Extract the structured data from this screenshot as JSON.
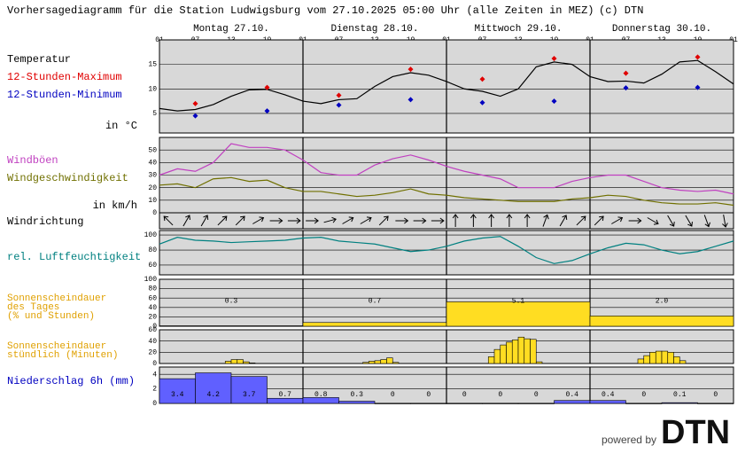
{
  "header": {
    "title": "Vorhersagediagramm für die Station Ludwigsburg vom 27.10.2025 05:00 Uhr (alle Zeiten in MEZ)",
    "copyright": "(c) DTN",
    "powered": "powered by",
    "logo": "DTN"
  },
  "time_axis": {
    "hour_labels": [
      "01",
      "07",
      "13",
      "19",
      "01",
      "07",
      "13",
      "19",
      "01",
      "07",
      "13",
      "19",
      "01",
      "07",
      "13",
      "19",
      "01"
    ],
    "days": [
      "Montag 27.10.",
      "Dienstag 28.10.",
      "Mittwoch 29.10.",
      "Donnerstag 30.10."
    ]
  },
  "chart_data": [
    {
      "type": "line",
      "labels": [
        {
          "text": "Temperatur",
          "color": "#000000"
        },
        {
          "text": "12-Stunden-Maximum",
          "color": "#e00000"
        },
        {
          "text": "12-Stunden-Minimum",
          "color": "#0000c0"
        }
      ],
      "unit": "in °C",
      "ylim": [
        1,
        20
      ],
      "yticks": [
        5,
        10,
        15
      ],
      "series": [
        {
          "color": "#000000",
          "x": [
            0,
            3,
            6,
            9,
            12,
            15,
            18,
            21,
            24,
            27,
            30,
            33,
            36,
            39,
            42,
            45,
            48,
            51,
            54,
            57,
            60,
            63,
            66,
            69,
            72,
            75,
            78,
            81,
            84,
            87,
            90,
            93,
            96
          ],
          "values": [
            6,
            5.5,
            5.8,
            6.8,
            8.5,
            9.8,
            9.9,
            8.8,
            7.5,
            7,
            7.8,
            8,
            10.5,
            12.5,
            13.3,
            12.8,
            11.5,
            10,
            9.5,
            8.5,
            10,
            14.5,
            15.5,
            15,
            12.5,
            11.5,
            11.6,
            11.2,
            13,
            15.5,
            15.8,
            13.5,
            11
          ]
        },
        {
          "color": "#e00000",
          "marker": "diamond",
          "x": [
            6,
            18,
            30,
            42,
            54,
            66,
            78,
            90
          ],
          "values": [
            7,
            10.3,
            8.7,
            14,
            12,
            16.2,
            13.2,
            16.5
          ]
        },
        {
          "color": "#0000c0",
          "marker": "diamond",
          "x": [
            6,
            18,
            30,
            42,
            54,
            66,
            78,
            90
          ],
          "values": [
            4.5,
            5.5,
            6.7,
            7.8,
            7.2,
            7.5,
            10.2,
            10.3
          ]
        }
      ]
    },
    {
      "type": "line",
      "labels": [
        {
          "text": "Windböen",
          "color": "#c040c0"
        },
        {
          "text": "Windgeschwindigkeit",
          "color": "#707000"
        }
      ],
      "unit": "in km/h",
      "ylim": [
        0,
        60
      ],
      "yticks": [
        0,
        10,
        20,
        30,
        40,
        50
      ],
      "series": [
        {
          "color": "#c040c0",
          "x": [
            0,
            3,
            6,
            9,
            12,
            15,
            18,
            21,
            24,
            27,
            30,
            33,
            36,
            39,
            42,
            45,
            48,
            51,
            54,
            57,
            60,
            63,
            66,
            69,
            72,
            75,
            78,
            81,
            84,
            87,
            90,
            93,
            96
          ],
          "values": [
            30,
            35,
            33,
            40,
            55,
            52,
            52,
            50,
            42,
            32,
            30,
            30,
            38,
            43,
            46,
            42,
            37,
            33,
            30,
            27,
            20,
            20,
            20,
            25,
            28,
            30,
            30,
            25,
            20,
            18,
            17,
            18,
            15
          ]
        },
        {
          "color": "#707000",
          "x": [
            0,
            3,
            6,
            9,
            12,
            15,
            18,
            21,
            24,
            27,
            30,
            33,
            36,
            39,
            42,
            45,
            48,
            51,
            54,
            57,
            60,
            63,
            66,
            69,
            72,
            75,
            78,
            81,
            84,
            87,
            90,
            93,
            96
          ],
          "values": [
            22,
            23,
            20,
            27,
            28,
            25,
            26,
            20,
            17,
            17,
            15,
            13,
            14,
            16,
            19,
            15,
            14,
            12,
            11,
            10,
            9,
            9,
            9,
            11,
            12,
            14,
            13,
            10,
            8,
            7,
            7,
            8,
            6
          ]
        }
      ]
    },
    {
      "type": "arrows",
      "labels": [
        {
          "text": "Windrichtung",
          "color": "#000000"
        }
      ],
      "x": [
        1.5,
        4.5,
        7.5,
        10.5,
        13.5,
        16.5,
        19.5,
        22.5,
        25.5,
        28.5,
        31.5,
        34.5,
        37.5,
        40.5,
        43.5,
        46.5,
        49.5,
        52.5,
        55.5,
        58.5,
        61.5,
        64.5,
        67.5,
        70.5,
        73.5,
        76.5,
        79.5,
        82.5,
        85.5,
        88.5,
        91.5,
        94.5
      ],
      "values": [
        315,
        30,
        30,
        45,
        45,
        60,
        90,
        90,
        90,
        75,
        60,
        60,
        45,
        90,
        90,
        90,
        0,
        0,
        0,
        0,
        0,
        20,
        30,
        45,
        45,
        60,
        90,
        120,
        150,
        150,
        160,
        170
      ]
    },
    {
      "type": "line",
      "labels": [
        {
          "text": "rel. Luftfeuchtigkeit",
          "color": "#008080"
        }
      ],
      "ylim": [
        47,
        106
      ],
      "yticks": [
        60,
        80,
        100
      ],
      "series": [
        {
          "color": "#008080",
          "x": [
            0,
            3,
            6,
            9,
            12,
            15,
            18,
            21,
            24,
            27,
            30,
            33,
            36,
            39,
            42,
            45,
            48,
            51,
            54,
            57,
            60,
            63,
            66,
            69,
            72,
            75,
            78,
            81,
            84,
            87,
            90,
            93,
            96
          ],
          "values": [
            88,
            97,
            93,
            92,
            90,
            91,
            92,
            93,
            96,
            97,
            92,
            90,
            88,
            83,
            78,
            80,
            85,
            92,
            96,
            98,
            85,
            70,
            62,
            66,
            75,
            83,
            89,
            87,
            80,
            75,
            78,
            85,
            92
          ]
        }
      ]
    },
    {
      "type": "bar",
      "labels": [
        {
          "text": "Sonnenscheindauer",
          "color": "#e0a000"
        },
        {
          "text": "des Tages",
          "color": "#e0a000"
        },
        {
          "text": "(% und Stunden)",
          "color": "#e0a000"
        }
      ],
      "ylim": [
        0,
        100
      ],
      "yticks": [
        0,
        20,
        40,
        60,
        80,
        100
      ],
      "series": [
        {
          "color": "#ffdd22",
          "x": [
            0,
            24,
            48,
            72
          ],
          "values": [
            1,
            8,
            52,
            22
          ],
          "value_labels": [
            "0.3",
            "0.7",
            "5.1",
            "2.0"
          ]
        }
      ]
    },
    {
      "type": "bar",
      "labels": [
        {
          "text": "Sonnenscheindauer",
          "color": "#e0a000"
        },
        {
          "text": "stündlich (Minuten)",
          "color": "#e0a000"
        }
      ],
      "ylim": [
        0,
        60
      ],
      "yticks": [
        0,
        20,
        40,
        60
      ],
      "series": [
        {
          "color": "#ffdd22",
          "x": [
            11,
            12,
            13,
            14,
            15,
            34,
            35,
            36,
            37,
            38,
            39,
            55,
            56,
            57,
            58,
            59,
            60,
            61,
            62,
            63,
            80,
            81,
            82,
            83,
            84,
            85,
            86,
            87
          ],
          "values": [
            4,
            7,
            7,
            3,
            1,
            2,
            4,
            5,
            7,
            10,
            2,
            12,
            25,
            33,
            38,
            42,
            47,
            44,
            43,
            3,
            8,
            14,
            20,
            22,
            22,
            20,
            12,
            5
          ]
        }
      ]
    },
    {
      "type": "bar",
      "labels": [
        {
          "text": "Niederschlag 6h (mm)",
          "color": "#0000c0"
        }
      ],
      "ylim": [
        0,
        5
      ],
      "yticks": [
        0,
        2,
        4
      ],
      "series": [
        {
          "color": "#6060ff",
          "labeled": true,
          "x": [
            0,
            6,
            12,
            18,
            24,
            30,
            36,
            42,
            48,
            54,
            60,
            66,
            72,
            78,
            84,
            90
          ],
          "values": [
            3.4,
            4.2,
            3.7,
            0.7,
            0.8,
            0.3,
            0,
            0,
            0,
            0,
            0,
            0.4,
            0.4,
            0,
            0.1,
            0
          ]
        }
      ]
    }
  ]
}
